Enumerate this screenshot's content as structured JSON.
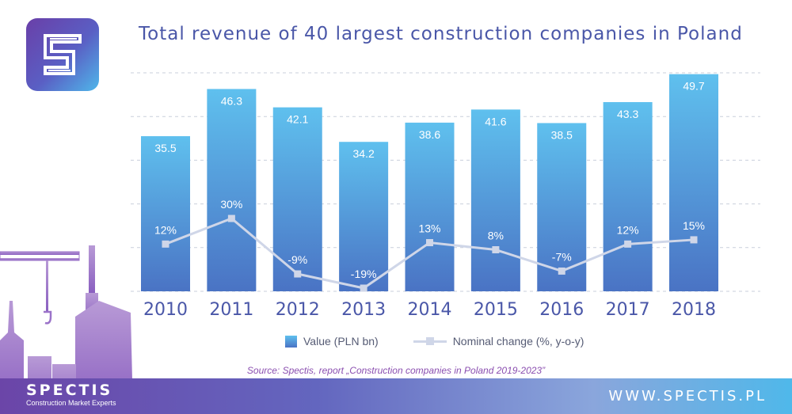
{
  "header": {
    "title": "Total revenue of 40 largest construction companies in Poland",
    "logo_icon": "spectis-s-logo-icon"
  },
  "chart_data": {
    "type": "bar",
    "title": "Total revenue of 40 largest construction companies in Poland",
    "categories": [
      "2010",
      "2011",
      "2012",
      "2013",
      "2014",
      "2015",
      "2016",
      "2017",
      "2018"
    ],
    "series": [
      {
        "name": "Value (PLN bn)",
        "type": "bar",
        "values": [
          35.5,
          46.3,
          42.1,
          34.2,
          38.6,
          41.6,
          38.5,
          43.3,
          49.7
        ],
        "labels": [
          "35.5",
          "46.3",
          "42.1",
          "34.2",
          "38.6",
          "41.6",
          "38.5",
          "43.3",
          "49.7"
        ]
      },
      {
        "name": "Nominal change (%, y-o-y)",
        "type": "line",
        "values": [
          12,
          30,
          -9,
          -19,
          13,
          8,
          -7,
          12,
          15
        ],
        "labels": [
          "12%",
          "30%",
          "-9%",
          "-19%",
          "13%",
          "8%",
          "-7%",
          "12%",
          "15%"
        ]
      }
    ],
    "ylim": [
      0,
      50
    ],
    "grid": true,
    "legend_position": "bottom",
    "colors": {
      "bar_top": "#5fc0ee",
      "bar_bottom": "#4a73c4",
      "line": "#cfd6e8",
      "title": "#4a57a8",
      "axis_text": "#4a57a8"
    }
  },
  "legend": {
    "bar_label": "Value (PLN bn)",
    "line_label": "Nominal change (%, y-o-y)"
  },
  "source": "Source: Spectis, report „Construction companies in Poland 2019-2023”",
  "footer": {
    "brand": "SPECTIS",
    "tagline": "Construction Market Experts",
    "website": "WWW.SPECTIS.PL"
  }
}
